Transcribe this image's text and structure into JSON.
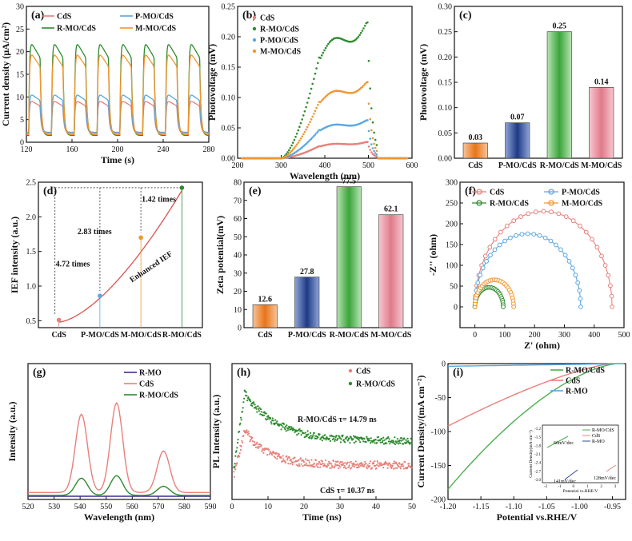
{
  "colors": {
    "cds": "#e8807a",
    "pmo": "#5aa7e2",
    "rmo": "#2e8b2e",
    "mmo": "#f0962e",
    "rmo_pure": "#3b2f8f",
    "hb_cds": "#e8a0a0",
    "hb_pmo": "#2d4b94",
    "hb_rmo": "#4caf50",
    "hb_mmo": "#e59aa6"
  },
  "chart_data": [
    {
      "id": "a",
      "panel_label": "(a)",
      "type": "line",
      "xlabel": "Time (s)",
      "ylabel": "Current density (μA/cm²)",
      "xlim": [
        120,
        280
      ],
      "ylim": [
        0,
        30
      ],
      "xticks": [
        "120",
        "160",
        "200",
        "240",
        "280"
      ],
      "yticks": [
        "0",
        "5",
        "10",
        "15",
        "20",
        "25",
        "30"
      ],
      "period_s": 20,
      "on_s": 10,
      "series": [
        {
          "name": "CdS",
          "color_key": "cds",
          "peak": 9.5,
          "dark": 2
        },
        {
          "name": "P-MO/CdS",
          "color_key": "pmo",
          "peak": 11,
          "dark": 2.2
        },
        {
          "name": "R-MO/CdS",
          "color_key": "rmo",
          "peak": 23,
          "dark": 1.5
        },
        {
          "name": "M-MO/CdS",
          "color_key": "mmo",
          "peak": 20.5,
          "dark": 1.7
        }
      ]
    },
    {
      "id": "b",
      "panel_label": "(b)",
      "type": "scatter",
      "xlabel": "Wavelength (nm)",
      "ylabel": "Photovoltage (mV)",
      "xlim": [
        200,
        600
      ],
      "ylim": [
        0,
        0.25
      ],
      "xticks": [
        "200",
        "300",
        "400",
        "500",
        "600"
      ],
      "yticks": [
        "0.00",
        "0.05",
        "0.10",
        "0.15",
        "0.20",
        "0.25"
      ],
      "series": [
        {
          "name": "CdS",
          "color_key": "cds",
          "scale": 0.03
        },
        {
          "name": "R-MO/CdS",
          "color_key": "rmo",
          "scale": 0.25
        },
        {
          "name": "P-MO/CdS",
          "color_key": "pmo",
          "scale": 0.07
        },
        {
          "name": "M-MO/CdS",
          "color_key": "mmo",
          "scale": 0.14
        }
      ]
    },
    {
      "id": "c",
      "panel_label": "(c)",
      "type": "bar",
      "ylabel": "Photovoltage (mV)",
      "ylim": [
        0,
        0.3
      ],
      "yticks": [
        "0.00",
        "0.05",
        "0.10",
        "0.15",
        "0.20",
        "0.25",
        "0.30"
      ],
      "categories": [
        "CdS",
        "P-MO/CdS",
        "R-MO/CdS",
        "M-MO/CdS"
      ],
      "values": [
        0.03,
        0.07,
        0.25,
        0.14
      ],
      "value_labels": [
        "0.03",
        "0.07",
        "0.25",
        "0.14"
      ],
      "color_keys": [
        "mmo",
        "hb_pmo",
        "hb_rmo",
        "hb_mmo"
      ]
    },
    {
      "id": "d",
      "panel_label": "(d)",
      "type": "scatter",
      "ylabel": "IEF intensity (a.u.)",
      "ylim": [
        0.4,
        2.5
      ],
      "yticks": [
        "0.5",
        "1.0",
        "1.5",
        "2.0",
        "2.5"
      ],
      "categories": [
        "CdS",
        "P-MO/CdS",
        "M-MO/CdS",
        "R-MO/CdS"
      ],
      "values": [
        0.51,
        0.86,
        1.7,
        2.42
      ],
      "annotations": [
        "4.72 times",
        "2.83 times",
        "1.42 times",
        "Enhanced IEF"
      ]
    },
    {
      "id": "e",
      "panel_label": "(e)",
      "type": "bar",
      "ylabel": "Zeta potential(mV)",
      "ylim": [
        0,
        80
      ],
      "yticks": [
        "0",
        "10",
        "20",
        "30",
        "40",
        "50",
        "60",
        "70",
        "80"
      ],
      "categories": [
        "CdS",
        "P-MO/CdS",
        "R-MO/CdS",
        "M-MO/CdS"
      ],
      "values": [
        12.6,
        27.8,
        77.5,
        62.1
      ],
      "value_labels": [
        "12.6",
        "27.8",
        "77.5",
        "62.1"
      ],
      "color_keys": [
        "mmo",
        "hb_pmo",
        "hb_rmo",
        "hb_mmo"
      ]
    },
    {
      "id": "f",
      "panel_label": "(f)",
      "type": "scatter",
      "xlabel": "Z' (ohm)",
      "ylabel": "-Z'' (ohm)",
      "xlim": [
        -50,
        500
      ],
      "ylim": [
        -50,
        300
      ],
      "xticks": [
        "0",
        "100",
        "200",
        "300",
        "400",
        "500"
      ],
      "yticks": [
        "0",
        "50",
        "100",
        "150",
        "200",
        "250",
        "300"
      ],
      "series": [
        {
          "name": "CdS",
          "color_key": "cds",
          "x0": 0,
          "x1": 460,
          "peak": 230
        },
        {
          "name": "P-MO/CdS",
          "color_key": "pmo",
          "x0": 0,
          "x1": 355,
          "peak": 176
        },
        {
          "name": "R-MO/CdS",
          "color_key": "rmo",
          "x0": 0,
          "x1": 95,
          "peak": 47
        },
        {
          "name": "M-MO/CdS",
          "color_key": "mmo",
          "x0": 0,
          "x1": 130,
          "peak": 65
        }
      ]
    },
    {
      "id": "g",
      "panel_label": "(g)",
      "type": "line",
      "xlabel": "Wavelength (nm)",
      "ylabel": "Intensity (a.u.)",
      "xlim": [
        520,
        590
      ],
      "xticks": [
        "520",
        "530",
        "540",
        "550",
        "560",
        "570",
        "580",
        "590"
      ],
      "series": [
        {
          "name": "R-MO",
          "color_key": "rmo_pure",
          "scale": 0.0
        },
        {
          "name": "CdS",
          "color_key": "cds",
          "scale": 1.0
        },
        {
          "name": "R-MO/CdS",
          "color_key": "rmo",
          "scale": 0.22
        }
      ]
    },
    {
      "id": "h",
      "panel_label": "(h)",
      "type": "scatter",
      "xlabel": "Time (ns)",
      "ylabel": "PL Intensity (a.u.)",
      "xlim": [
        0,
        50
      ],
      "xticks": [
        "0",
        "10",
        "20",
        "30",
        "40",
        "50"
      ],
      "annotations": [
        "R-MO/CdS τ= 14.79 ns",
        "CdS τ= 10.37 ns"
      ],
      "series": [
        {
          "name": "CdS",
          "color_key": "cds",
          "tau": 10.37
        },
        {
          "name": "R-MO/CdS",
          "color_key": "rmo",
          "tau": 14.79
        }
      ]
    },
    {
      "id": "i",
      "panel_label": "(i)",
      "type": "line",
      "xlabel": "Potential vs.RHE/V",
      "ylabel": "Current Density/(mA cm⁻²)",
      "xlim": [
        -1.2,
        -0.93
      ],
      "ylim": [
        -200,
        0
      ],
      "xticks": [
        "-1.20",
        "-1.15",
        "-1.10",
        "-1.05",
        "-1.00",
        "-0.95"
      ],
      "yticks": [
        "0",
        "-50",
        "-100",
        "-150",
        "-200"
      ],
      "series": [
        {
          "name": "R-MO/CdS",
          "color_key": "hb_rmo",
          "value_at_-1.2": -185
        },
        {
          "name": "CdS",
          "color_key": "cds",
          "value_at_-1.2": -92
        },
        {
          "name": "R-MO",
          "color_key": "pmo",
          "value_at_-1.2": -4
        }
      ],
      "inset": {
        "xlabel": "Potential vs.RHE/V",
        "ylabel": "Current Density(mA cm⁻²)",
        "yticks": [
          "-1.2",
          "-1.5",
          "-1.8",
          "-2.1",
          "-2.4",
          "-2.7",
          "-3.0"
        ],
        "xticks": [
          "-2",
          "-1",
          "0",
          "1",
          "2",
          "3"
        ],
        "legend": [
          "R-MO/CdS",
          "CdS",
          "R-MO"
        ],
        "annotations": [
          "66mV/dec",
          "141mV/dec",
          "128mV/dec"
        ]
      }
    }
  ]
}
